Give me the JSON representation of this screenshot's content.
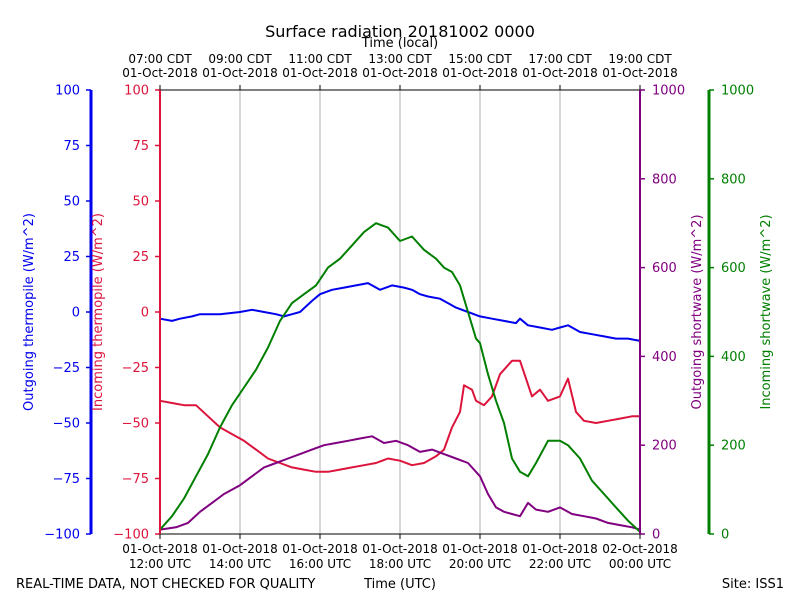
{
  "chart_data": {
    "type": "line",
    "title": "Surface radiation 20181002 0000",
    "top_axis_label": "Time (local)",
    "xlabel": "Time (UTC)",
    "footer_left": "REAL-TIME DATA, NOT CHECKED FOR QUALITY",
    "footer_right": "Site: ISS1",
    "x_range_hours_utc": [
      12,
      24
    ],
    "grid": "vertical",
    "top_ticks": [
      {
        "hour": 12,
        "line1": "07:00 CDT",
        "line2": "01-Oct-2018"
      },
      {
        "hour": 14,
        "line1": "09:00 CDT",
        "line2": "01-Oct-2018"
      },
      {
        "hour": 16,
        "line1": "11:00 CDT",
        "line2": "01-Oct-2018"
      },
      {
        "hour": 18,
        "line1": "13:00 CDT",
        "line2": "01-Oct-2018"
      },
      {
        "hour": 20,
        "line1": "15:00 CDT",
        "line2": "01-Oct-2018"
      },
      {
        "hour": 22,
        "line1": "17:00 CDT",
        "line2": "01-Oct-2018"
      },
      {
        "hour": 24,
        "line1": "19:00 CDT",
        "line2": "01-Oct-2018"
      }
    ],
    "bottom_ticks": [
      {
        "hour": 12,
        "line1": "01-Oct-2018",
        "line2": "12:00 UTC"
      },
      {
        "hour": 14,
        "line1": "01-Oct-2018",
        "line2": "14:00 UTC"
      },
      {
        "hour": 16,
        "line1": "01-Oct-2018",
        "line2": "16:00 UTC"
      },
      {
        "hour": 18,
        "line1": "01-Oct-2018",
        "line2": "18:00 UTC"
      },
      {
        "hour": 20,
        "line1": "01-Oct-2018",
        "line2": "20:00 UTC"
      },
      {
        "hour": 22,
        "line1": "01-Oct-2018",
        "line2": "22:00 UTC"
      },
      {
        "hour": 24,
        "line1": "02-Oct-2018",
        "line2": "00:00 UTC"
      }
    ],
    "axes": [
      {
        "id": "out_lw",
        "label": "Outgoing thermopile (W/m^2)",
        "color": "#0000ee",
        "range": [
          -100,
          100
        ],
        "ticks": [
          -100,
          -75,
          -50,
          -25,
          0,
          25,
          50,
          75,
          100
        ],
        "tick_labels": [
          "−100",
          "−75",
          "−50",
          "−25",
          "0",
          "25",
          "50",
          "75",
          "100"
        ]
      },
      {
        "id": "in_lw",
        "label": "Incoming thermopile (W/m^2)",
        "color": "#dc143c",
        "range": [
          -100,
          100
        ],
        "ticks": [
          -100,
          -75,
          -50,
          -25,
          0,
          25,
          50,
          75,
          100
        ],
        "tick_labels": [
          "−100",
          "−75",
          "−50",
          "−25",
          "0",
          "25",
          "50",
          "75",
          "100"
        ]
      },
      {
        "id": "out_sw",
        "label": "Outgoing shortwave (W/m^2)",
        "color": "#800080",
        "range": [
          0,
          1000
        ],
        "ticks": [
          0,
          200,
          400,
          600,
          800,
          1000
        ],
        "tick_labels": [
          "0",
          "200",
          "400",
          "600",
          "800",
          "1000"
        ]
      },
      {
        "id": "in_sw",
        "label": "Incoming shortwave (W/m^2)",
        "color": "#007f00",
        "range": [
          0,
          1000
        ],
        "ticks": [
          0,
          200,
          400,
          600,
          800,
          1000
        ],
        "tick_labels": [
          "0",
          "200",
          "400",
          "600",
          "800",
          "1000"
        ]
      }
    ],
    "series": [
      {
        "name": "Outgoing thermopile",
        "axis": "out_lw",
        "color": "#0000ee",
        "x": [
          12.0,
          12.3,
          12.5,
          12.8,
          13.0,
          13.5,
          14.0,
          14.3,
          14.6,
          14.9,
          15.1,
          15.3,
          15.5,
          15.8,
          16.0,
          16.3,
          16.6,
          16.9,
          17.2,
          17.5,
          17.8,
          18.1,
          18.3,
          18.5,
          18.7,
          19.0,
          19.2,
          19.4,
          19.7,
          20.0,
          20.3,
          20.6,
          20.9,
          21.0,
          21.2,
          21.5,
          21.8,
          22.0,
          22.2,
          22.5,
          22.8,
          23.1,
          23.4,
          23.7,
          24.0
        ],
        "y": [
          -3,
          -4,
          -3,
          -2,
          -1,
          -1,
          0,
          1,
          0,
          -1,
          -2,
          -1,
          0,
          5,
          8,
          10,
          11,
          12,
          13,
          10,
          12,
          11,
          10,
          8,
          7,
          6,
          4,
          2,
          0,
          -2,
          -3,
          -4,
          -5,
          -3,
          -6,
          -7,
          -8,
          -7,
          -6,
          -9,
          -10,
          -11,
          -12,
          -12,
          -13
        ]
      },
      {
        "name": "Incoming thermopile",
        "axis": "in_lw",
        "color": "#dc143c",
        "x": [
          12.0,
          12.3,
          12.6,
          12.9,
          13.2,
          13.5,
          13.8,
          14.1,
          14.4,
          14.7,
          15.0,
          15.3,
          15.6,
          15.9,
          16.2,
          16.5,
          16.8,
          17.1,
          17.4,
          17.7,
          18.0,
          18.3,
          18.6,
          18.9,
          19.1,
          19.3,
          19.5,
          19.6,
          19.8,
          19.9,
          20.1,
          20.3,
          20.5,
          20.8,
          21.0,
          21.3,
          21.5,
          21.7,
          22.0,
          22.2,
          22.4,
          22.6,
          22.9,
          23.2,
          23.5,
          23.8,
          24.0
        ],
        "y": [
          -40,
          -41,
          -42,
          -42,
          -47,
          -52,
          -55,
          -58,
          -62,
          -66,
          -68,
          -70,
          -71,
          -72,
          -72,
          -71,
          -70,
          -69,
          -68,
          -66,
          -67,
          -69,
          -68,
          -65,
          -62,
          -52,
          -45,
          -33,
          -35,
          -40,
          -42,
          -38,
          -28,
          -22,
          -22,
          -38,
          -35,
          -40,
          -38,
          -30,
          -45,
          -49,
          -50,
          -49,
          -48,
          -47,
          -47
        ]
      },
      {
        "name": "Outgoing shortwave",
        "axis": "out_sw",
        "color": "#800080",
        "x": [
          12.0,
          12.4,
          12.7,
          13.0,
          13.3,
          13.6,
          14.0,
          14.3,
          14.6,
          14.9,
          15.2,
          15.5,
          15.8,
          16.1,
          16.4,
          16.7,
          17.0,
          17.3,
          17.6,
          17.9,
          18.2,
          18.5,
          18.8,
          19.1,
          19.4,
          19.7,
          20.0,
          20.2,
          20.4,
          20.6,
          20.8,
          21.0,
          21.2,
          21.4,
          21.7,
          22.0,
          22.3,
          22.6,
          22.9,
          23.2,
          23.5,
          23.8,
          24.0
        ],
        "y": [
          10,
          15,
          25,
          50,
          70,
          90,
          110,
          130,
          150,
          160,
          170,
          180,
          190,
          200,
          205,
          210,
          215,
          220,
          205,
          210,
          200,
          185,
          190,
          180,
          170,
          160,
          130,
          90,
          60,
          50,
          45,
          40,
          70,
          55,
          50,
          60,
          45,
          40,
          35,
          25,
          20,
          15,
          10
        ]
      },
      {
        "name": "Incoming shortwave",
        "axis": "in_sw",
        "color": "#007f00",
        "x": [
          12.0,
          12.3,
          12.6,
          12.9,
          13.2,
          13.5,
          13.8,
          14.1,
          14.4,
          14.7,
          15.0,
          15.3,
          15.6,
          15.9,
          16.2,
          16.5,
          16.8,
          17.1,
          17.4,
          17.7,
          18.0,
          18.3,
          18.6,
          18.9,
          19.1,
          19.3,
          19.5,
          19.7,
          19.9,
          20.0,
          20.2,
          20.4,
          20.6,
          20.8,
          21.0,
          21.2,
          21.4,
          21.7,
          22.0,
          22.2,
          22.5,
          22.8,
          23.1,
          23.4,
          23.7,
          24.0
        ],
        "y": [
          10,
          40,
          80,
          130,
          180,
          240,
          290,
          330,
          370,
          420,
          480,
          520,
          540,
          560,
          600,
          620,
          650,
          680,
          700,
          690,
          660,
          670,
          640,
          620,
          600,
          590,
          560,
          500,
          440,
          430,
          360,
          300,
          250,
          170,
          140,
          130,
          160,
          210,
          210,
          200,
          170,
          120,
          90,
          60,
          30,
          5
        ]
      }
    ]
  }
}
